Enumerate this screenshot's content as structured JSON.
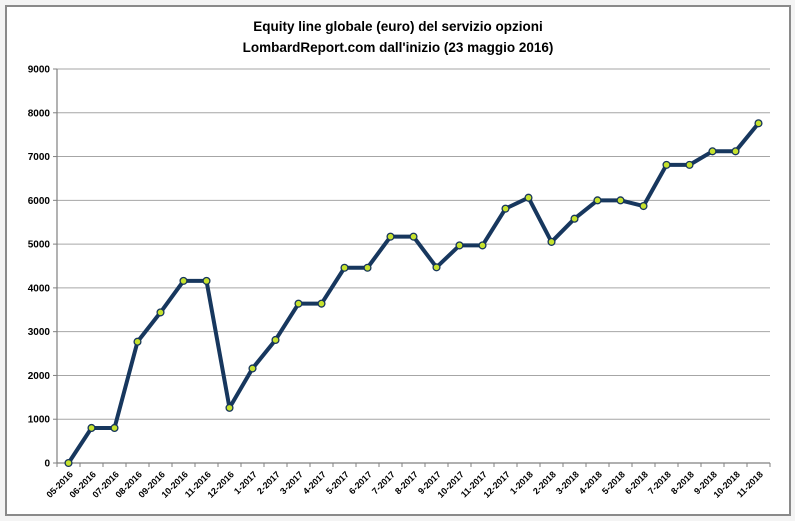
{
  "title": {
    "line1": "Equity line globale (euro) del servizio opzioni",
    "line2": "LombardReport.com dall'inizio (23 maggio 2016)"
  },
  "colors": {
    "line": "#17375E",
    "marker_fill": "#C6E22E",
    "marker_border": "#16355A",
    "gridline": "#A6A6A6",
    "axis": "#808080",
    "text": "#000000",
    "frame_border": "#8A8A8A",
    "background": "#FFFFFF"
  },
  "chart_data": {
    "type": "line",
    "title": "Equity line globale (euro) del servizio opzioni LombardReport.com dall'inizio (23 maggio 2016)",
    "xlabel": "",
    "ylabel": "",
    "grid": true,
    "legend": false,
    "ylim": [
      0,
      9000
    ],
    "ytick_step": 1000,
    "yticks": [
      0,
      1000,
      2000,
      3000,
      4000,
      5000,
      6000,
      7000,
      8000,
      9000
    ],
    "categories": [
      "05-2016",
      "06-2016",
      "07-2016",
      "08-2016",
      "09-2016",
      "10-2016",
      "11-2016",
      "12-2016",
      "1-2017",
      "2-2017",
      "3-2017",
      "4-2017",
      "5-2017",
      "6-2017",
      "7-2017",
      "8-2017",
      "9-2017",
      "10-2017",
      "11-2017",
      "12-2017",
      "1-2018",
      "2-2018",
      "3-2018",
      "4-2018",
      "5-2018",
      "6-2018",
      "7-2018",
      "8-2018",
      "9-2018",
      "10-2018",
      "11-2018"
    ],
    "values": [
      0,
      800,
      800,
      2770,
      3440,
      4160,
      4160,
      1260,
      2160,
      2810,
      3640,
      3640,
      4460,
      4460,
      5170,
      5170,
      4470,
      4970,
      4970,
      5810,
      6060,
      5050,
      5580,
      6000,
      6000,
      5870,
      6810,
      6810,
      7120,
      7120,
      7760
    ]
  }
}
